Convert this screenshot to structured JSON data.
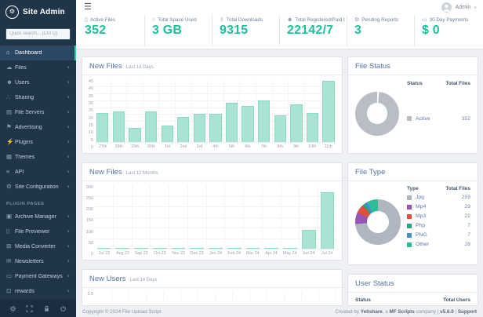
{
  "app": {
    "title": "Site Admin"
  },
  "sidebar": {
    "logo_text": "Site Admin",
    "logo_glyph": "⚙",
    "search_placeholder": "Quick search... (Ctrl Q)",
    "items": [
      {
        "label": "Dashboard",
        "icon": "dashboard",
        "glyph": "⌂",
        "active": true,
        "expandable": false
      },
      {
        "label": "Files",
        "icon": "files",
        "glyph": "☁",
        "active": false,
        "expandable": true
      },
      {
        "label": "Users",
        "icon": "users",
        "glyph": "☻",
        "active": false,
        "expandable": true
      },
      {
        "label": "Sharing",
        "icon": "sharing",
        "glyph": "∴",
        "active": false,
        "expandable": true
      },
      {
        "label": "File Servers",
        "icon": "file-servers",
        "glyph": "▤",
        "active": false,
        "expandable": true
      },
      {
        "label": "Advertising",
        "icon": "advertising",
        "glyph": "⚑",
        "active": false,
        "expandable": true
      },
      {
        "label": "Plugins",
        "icon": "plugins",
        "glyph": "⚡",
        "active": false,
        "expandable": true
      },
      {
        "label": "Themes",
        "icon": "themes",
        "glyph": "▦",
        "active": false,
        "expandable": true
      },
      {
        "label": "API",
        "icon": "api",
        "glyph": "≡",
        "active": false,
        "expandable": true
      },
      {
        "label": "Site Configuration",
        "icon": "site-configuration",
        "glyph": "⚙",
        "active": false,
        "expandable": true
      }
    ],
    "section_header": "PLUGIN PAGES",
    "plugin_items": [
      {
        "label": "Archive Manager",
        "icon": "archive-manager",
        "glyph": "▣",
        "active": false,
        "expandable": true
      },
      {
        "label": "File Previewer",
        "icon": "file-previewer",
        "glyph": "▯",
        "active": false,
        "expandable": true
      },
      {
        "label": "Media Converter",
        "icon": "media-converter",
        "glyph": "⊞",
        "active": false,
        "expandable": true
      },
      {
        "label": "Newsletters",
        "icon": "newsletters",
        "glyph": "✉",
        "active": false,
        "expandable": true
      },
      {
        "label": "Payment Gateways",
        "icon": "payment-gateways",
        "glyph": "▭",
        "active": false,
        "expandable": true
      },
      {
        "label": "rewards",
        "icon": "rewards",
        "glyph": "⊡",
        "active": false,
        "expandable": true
      }
    ],
    "util_icons": [
      "gear",
      "expand",
      "lock",
      "power"
    ]
  },
  "header": {
    "user_label": "Admin"
  },
  "stats": [
    {
      "label": "Active Files",
      "value": "352",
      "icon": "file",
      "glyph": "▯"
    },
    {
      "label": "Total Space Used",
      "value": "3 GB",
      "icon": "disk",
      "glyph": "○"
    },
    {
      "label": "Total Downloads",
      "value": "9315",
      "icon": "download",
      "glyph": "⇩"
    },
    {
      "label": "Total Registered/Paid Users",
      "value": "22142/7",
      "icon": "user",
      "glyph": "☻"
    },
    {
      "label": "Pending Reports",
      "value": "3",
      "icon": "report",
      "glyph": "⚙"
    },
    {
      "label": "30 Day Payments",
      "value": "$ 0",
      "icon": "payment",
      "glyph": "▭"
    }
  ],
  "panels": {
    "files14": {
      "title": "New Files",
      "subtitle": "Last 14 Days"
    },
    "files12": {
      "title": "New Files",
      "subtitle": "Last 12 Months"
    },
    "new_users": {
      "title": "New Users",
      "subtitle": "Last 14 Days",
      "visible_y_tick": "3.5"
    },
    "file_status": {
      "title": "File Status",
      "col_label": "Status",
      "col_value": "Total Files"
    },
    "file_type": {
      "title": "File Type",
      "col_label": "Type",
      "col_value": "Total Files"
    },
    "user_status": {
      "title": "User Status",
      "col_label": "Status",
      "col_value": "Total Users"
    }
  },
  "chart_data": [
    {
      "type": "bar",
      "title": "New Files",
      "subtitle": "Last 14 Days",
      "categories": [
        "27th",
        "28th",
        "29th",
        "30th",
        "1st",
        "2nd",
        "3rd",
        "4th",
        "5th",
        "6th",
        "7th",
        "8th",
        "9th",
        "10th",
        "11th"
      ],
      "values": [
        21,
        22,
        10,
        22,
        12,
        18,
        20,
        20,
        28,
        26,
        30,
        19,
        27,
        21,
        44
      ],
      "ylim": [
        0,
        45
      ],
      "yticks": [
        0,
        5,
        10,
        15,
        20,
        25,
        30,
        35,
        40,
        45
      ],
      "grid": true,
      "legend": "none",
      "bar_color": "#a9e3d3",
      "bar_border": "#8bdac4"
    },
    {
      "type": "bar",
      "title": "New Files",
      "subtitle": "Last 12 Months",
      "categories": [
        "Jul 23",
        "Aug 23",
        "Sep 23",
        "Oct 23",
        "Nov 23",
        "Dec 23",
        "Jan 24",
        "Feb 24",
        "Mar 24",
        "Apr 24",
        "May 24",
        "Jun 24",
        "Jul 24"
      ],
      "values": [
        1,
        2,
        2,
        2,
        2,
        2,
        2,
        1,
        1,
        1,
        1,
        88,
        265
      ],
      "ylim": [
        0,
        300
      ],
      "yticks": [
        0,
        50,
        100,
        150,
        200,
        250,
        300
      ],
      "grid": true,
      "legend": "none",
      "bar_color": "#a9e3d3",
      "bar_border": "#8bdac4"
    },
    {
      "type": "donut",
      "title": "File Status",
      "gap_deg": 5,
      "slices": [
        {
          "label": "Active",
          "value": 352,
          "color": "#b9bec6"
        }
      ]
    },
    {
      "type": "donut",
      "title": "File Type",
      "gap_deg": 0,
      "slices": [
        {
          "label": "Jpg",
          "value": 259,
          "color": "#b0b6bf"
        },
        {
          "label": "Mp4",
          "value": 29,
          "color": "#9455b3"
        },
        {
          "label": "Mp3",
          "value": 22,
          "color": "#e24c3f"
        },
        {
          "label": "Php",
          "value": 7,
          "color": "#27a874"
        },
        {
          "label": "PNG",
          "value": 7,
          "color": "#4a8fd4"
        },
        {
          "label": "Other",
          "value": 28,
          "color": "#2fbc9a"
        }
      ]
    },
    {
      "type": "bar",
      "title": "New Users",
      "subtitle": "Last 14 Days",
      "categories": [],
      "values": [],
      "ylim": [
        0,
        3.5
      ],
      "visible_y_tick": "3.5",
      "cut_off_by_viewport": true
    }
  ],
  "footer": {
    "left": "Copyright © 2024 File Upload Script",
    "right_segments": [
      {
        "text": "Created by ",
        "bold": false,
        "link": false
      },
      {
        "text": "Yetishare",
        "bold": true,
        "link": true
      },
      {
        "text": ", a ",
        "bold": false,
        "link": false
      },
      {
        "text": "MF Scripts",
        "bold": true,
        "link": true
      },
      {
        "text": " company",
        "bold": false,
        "link": false
      },
      {
        "text": "  |  ",
        "bold": false,
        "link": false
      },
      {
        "text": "v5.6.0",
        "bold": true,
        "link": false
      },
      {
        "text": "  |  ",
        "bold": false,
        "link": false
      },
      {
        "text": "Support",
        "bold": true,
        "link": true
      }
    ]
  },
  "colors": {
    "accent": "#1fbf9c",
    "sidebar_bg": "#213549",
    "active_stripe": "#2bd0a7"
  }
}
